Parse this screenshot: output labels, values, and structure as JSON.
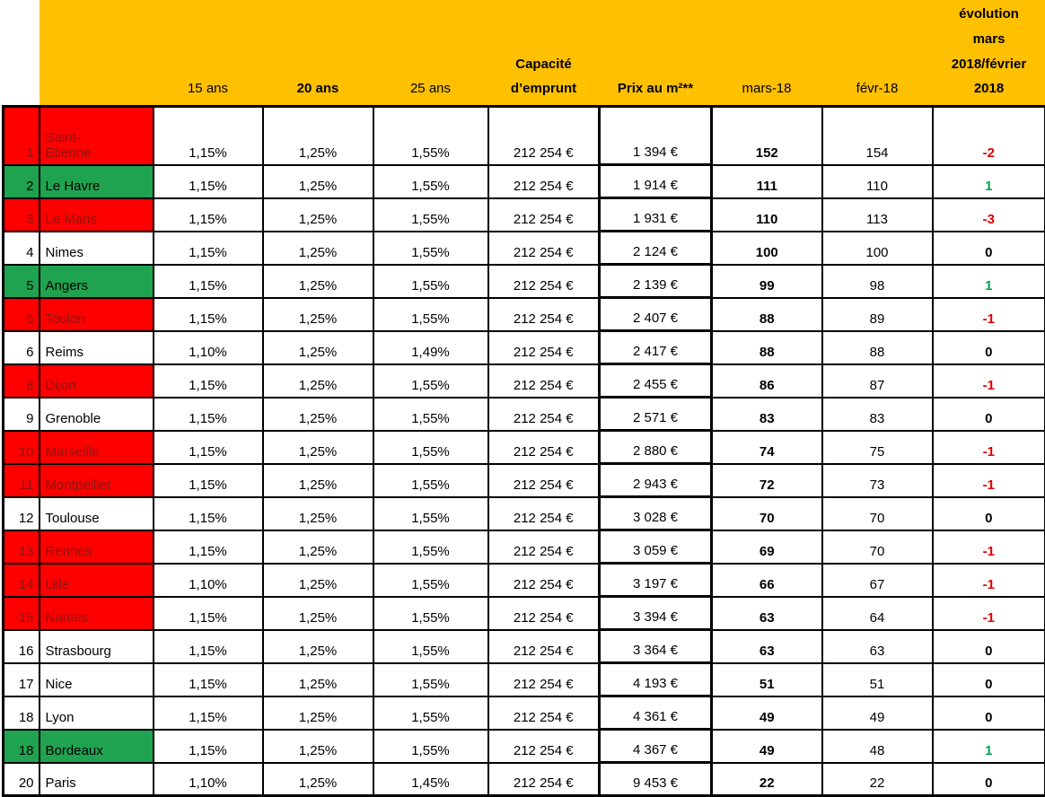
{
  "table": {
    "columns": [
      "15 ans",
      "20 ans",
      "25 ans",
      "Capacité\nd’emprunt",
      "Prix au m²**",
      "mars-18",
      "févr-18",
      "évolution\nmars\n2018/février\n2018"
    ],
    "colors": {
      "header_bg": "#FFC000",
      "negative_row_bg": "#FE0000",
      "negative_row_text": "#8C1414",
      "positive_row_bg": "#1FA350",
      "evolution_negative": "#E00000",
      "evolution_positive": "#00A552",
      "grid_border": "#000000"
    },
    "rows": [
      {
        "rank": "1",
        "city": "Saint-\nEtienne",
        "t15": "1,15%",
        "t20": "1,25%",
        "t25": "1,55%",
        "cap": "212 254 €",
        "prix": "1 394 €",
        "mars": "152",
        "fevr": "154",
        "evo": "-2",
        "hl": "red"
      },
      {
        "rank": "2",
        "city": "Le Havre",
        "t15": "1,15%",
        "t20": "1,25%",
        "t25": "1,55%",
        "cap": "212 254 €",
        "prix": "1 914 €",
        "mars": "111",
        "fevr": "110",
        "evo": "1",
        "hl": "green"
      },
      {
        "rank": "3",
        "city": "Le Mans",
        "t15": "1,15%",
        "t20": "1,25%",
        "t25": "1,55%",
        "cap": "212 254 €",
        "prix": "1 931 €",
        "mars": "110",
        "fevr": "113",
        "evo": "-3",
        "hl": "red"
      },
      {
        "rank": "4",
        "city": "Nimes",
        "t15": "1,15%",
        "t20": "1,25%",
        "t25": "1,55%",
        "cap": "212 254 €",
        "prix": "2 124 €",
        "mars": "100",
        "fevr": "100",
        "evo": "0",
        "hl": "none"
      },
      {
        "rank": "5",
        "city": "Angers",
        "t15": "1,15%",
        "t20": "1,25%",
        "t25": "1,55%",
        "cap": "212 254 €",
        "prix": "2 139 €",
        "mars": "99",
        "fevr": "98",
        "evo": "1",
        "hl": "green"
      },
      {
        "rank": "6",
        "city": "Toulon",
        "t15": "1,15%",
        "t20": "1,25%",
        "t25": "1,55%",
        "cap": "212 254 €",
        "prix": "2 407 €",
        "mars": "88",
        "fevr": "89",
        "evo": "-1",
        "hl": "red"
      },
      {
        "rank": "6",
        "city": "Reims",
        "t15": "1,10%",
        "t20": "1,25%",
        "t25": "1,49%",
        "cap": "212 254 €",
        "prix": "2 417 €",
        "mars": "88",
        "fevr": "88",
        "evo": "0",
        "hl": "none"
      },
      {
        "rank": "8",
        "city": "Dijon",
        "t15": "1,15%",
        "t20": "1,25%",
        "t25": "1,55%",
        "cap": "212 254 €",
        "prix": "2 455 €",
        "mars": "86",
        "fevr": "87",
        "evo": "-1",
        "hl": "red"
      },
      {
        "rank": "9",
        "city": "Grenoble",
        "t15": "1,15%",
        "t20": "1,25%",
        "t25": "1,55%",
        "cap": "212 254 €",
        "prix": "2 571 €",
        "mars": "83",
        "fevr": "83",
        "evo": "0",
        "hl": "none"
      },
      {
        "rank": "10",
        "city": "Marseille",
        "t15": "1,15%",
        "t20": "1,25%",
        "t25": "1,55%",
        "cap": "212 254 €",
        "prix": "2 880 €",
        "mars": "74",
        "fevr": "75",
        "evo": "-1",
        "hl": "red"
      },
      {
        "rank": "11",
        "city": "Montpellier",
        "t15": "1,15%",
        "t20": "1,25%",
        "t25": "1,55%",
        "cap": "212 254 €",
        "prix": "2 943 €",
        "mars": "72",
        "fevr": "73",
        "evo": "-1",
        "hl": "red"
      },
      {
        "rank": "12",
        "city": "Toulouse",
        "t15": "1,15%",
        "t20": "1,25%",
        "t25": "1,55%",
        "cap": "212 254 €",
        "prix": "3 028 €",
        "mars": "70",
        "fevr": "70",
        "evo": "0",
        "hl": "none"
      },
      {
        "rank": "13",
        "city": "Rennes",
        "t15": "1,15%",
        "t20": "1,25%",
        "t25": "1,55%",
        "cap": "212 254 €",
        "prix": "3 059 €",
        "mars": "69",
        "fevr": "70",
        "evo": "-1",
        "hl": "red"
      },
      {
        "rank": "14",
        "city": "Lille",
        "t15": "1,10%",
        "t20": "1,25%",
        "t25": "1,55%",
        "cap": "212 254 €",
        "prix": "3 197 €",
        "mars": "66",
        "fevr": "67",
        "evo": "-1",
        "hl": "red"
      },
      {
        "rank": "15",
        "city": "Nantes",
        "t15": "1,15%",
        "t20": "1,25%",
        "t25": "1,55%",
        "cap": "212 254 €",
        "prix": "3 394 €",
        "mars": "63",
        "fevr": "64",
        "evo": "-1",
        "hl": "red"
      },
      {
        "rank": "16",
        "city": "Strasbourg",
        "t15": "1,15%",
        "t20": "1,25%",
        "t25": "1,55%",
        "cap": "212 254 €",
        "prix": "3 364 €",
        "mars": "63",
        "fevr": "63",
        "evo": "0",
        "hl": "none"
      },
      {
        "rank": "17",
        "city": "Nice",
        "t15": "1,15%",
        "t20": "1,25%",
        "t25": "1,55%",
        "cap": "212 254 €",
        "prix": "4 193 €",
        "mars": "51",
        "fevr": "51",
        "evo": "0",
        "hl": "none"
      },
      {
        "rank": "18",
        "city": "Lyon",
        "t15": "1,15%",
        "t20": "1,25%",
        "t25": "1,55%",
        "cap": "212 254 €",
        "prix": "4 361 €",
        "mars": "49",
        "fevr": "49",
        "evo": "0",
        "hl": "none"
      },
      {
        "rank": "18",
        "city": "Bordeaux",
        "t15": "1,15%",
        "t20": "1,25%",
        "t25": "1,55%",
        "cap": "212 254 €",
        "prix": "4 367 €",
        "mars": "49",
        "fevr": "48",
        "evo": "1",
        "hl": "green"
      },
      {
        "rank": "20",
        "city": "Paris",
        "t15": "1,10%",
        "t20": "1,25%",
        "t25": "1,45%",
        "cap": "212 254 €",
        "prix": "9 453 €",
        "mars": "22",
        "fevr": "22",
        "evo": "0",
        "hl": "none"
      }
    ]
  }
}
